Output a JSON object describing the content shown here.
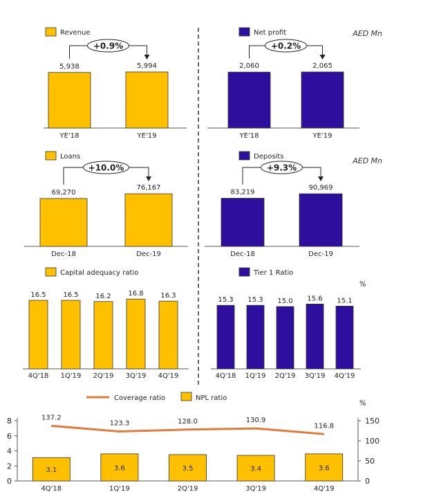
{
  "colors": {
    "gold": "#FFC000",
    "purple": "#2E0E9C",
    "orange": "#E07B3C",
    "axis": "#333333",
    "divider": "#333333"
  },
  "units": {
    "aed_top": "AED Mn",
    "aed_mid": "AED Mn",
    "pct_ratios": "%",
    "pct_bottom": "%"
  },
  "chart_data": [
    {
      "id": "revenue",
      "type": "bar",
      "legend": "Revenue",
      "color": "gold",
      "categories": [
        "YE'18",
        "YE'19"
      ],
      "values": [
        5938,
        5994
      ],
      "value_labels": [
        "5,938",
        "5,994"
      ],
      "growth_label": "+0.9%"
    },
    {
      "id": "net_profit",
      "type": "bar",
      "legend": "Net profit",
      "color": "purple",
      "categories": [
        "YE'18",
        "YE'19"
      ],
      "values": [
        2060,
        2065
      ],
      "value_labels": [
        "2,060",
        "2,065"
      ],
      "growth_label": "+0.2%"
    },
    {
      "id": "loans",
      "type": "bar",
      "legend": "Loans",
      "color": "gold",
      "categories": [
        "Dec-18",
        "Dec-19"
      ],
      "values": [
        69270,
        76167
      ],
      "value_labels": [
        "69,270",
        "76,167"
      ],
      "growth_label": "+10.0%"
    },
    {
      "id": "deposits",
      "type": "bar",
      "legend": "Deposits",
      "color": "purple",
      "categories": [
        "Dec-18",
        "Dec-19"
      ],
      "values": [
        83219,
        90969
      ],
      "value_labels": [
        "83,219",
        "90,969"
      ],
      "growth_label": "+9.3%"
    },
    {
      "id": "car",
      "type": "bar",
      "legend": "Capital adequacy ratio",
      "color": "gold",
      "categories": [
        "4Q'18",
        "1Q'19",
        "2Q'19",
        "3Q'19",
        "4Q'19"
      ],
      "values": [
        16.5,
        16.5,
        16.2,
        16.8,
        16.3
      ],
      "value_labels": [
        "16.5",
        "16.5",
        "16.2",
        "16.8",
        "16.3"
      ]
    },
    {
      "id": "tier1",
      "type": "bar",
      "legend": "Tier 1 Ratio",
      "color": "purple",
      "categories": [
        "4Q'18",
        "1Q'19",
        "2Q'19",
        "3Q'19",
        "4Q'19"
      ],
      "values": [
        15.3,
        15.3,
        15.0,
        15.6,
        15.1
      ],
      "value_labels": [
        "15.3",
        "15.3",
        "15.0",
        "15.6",
        "15.1"
      ]
    },
    {
      "id": "npl_coverage",
      "type": "bar",
      "categories": [
        "4Q'18",
        "1Q'19",
        "2Q'19",
        "3Q'19",
        "4Q'19"
      ],
      "series": [
        {
          "name": "NPL ratio",
          "type": "bar",
          "axis": "left",
          "color": "gold",
          "values": [
            3.1,
            3.6,
            3.5,
            3.4,
            3.6
          ],
          "value_labels": [
            "3.1",
            "3.6",
            "3.5",
            "3.4",
            "3.6"
          ]
        },
        {
          "name": "Coverage ratio",
          "type": "line",
          "axis": "right",
          "color": "orange",
          "values": [
            137.2,
            123.3,
            128.0,
            130.9,
            116.8
          ],
          "value_labels": [
            "137.2",
            "123.3",
            "128.0",
            "130.9",
            "116.8"
          ]
        }
      ],
      "ylim_left": [
        0,
        8
      ],
      "yticks_left": [
        "0",
        "2",
        "4",
        "6",
        "8"
      ],
      "ylim_right": [
        0,
        150
      ],
      "yticks_right": [
        "0",
        "50",
        "100",
        "150"
      ]
    }
  ]
}
